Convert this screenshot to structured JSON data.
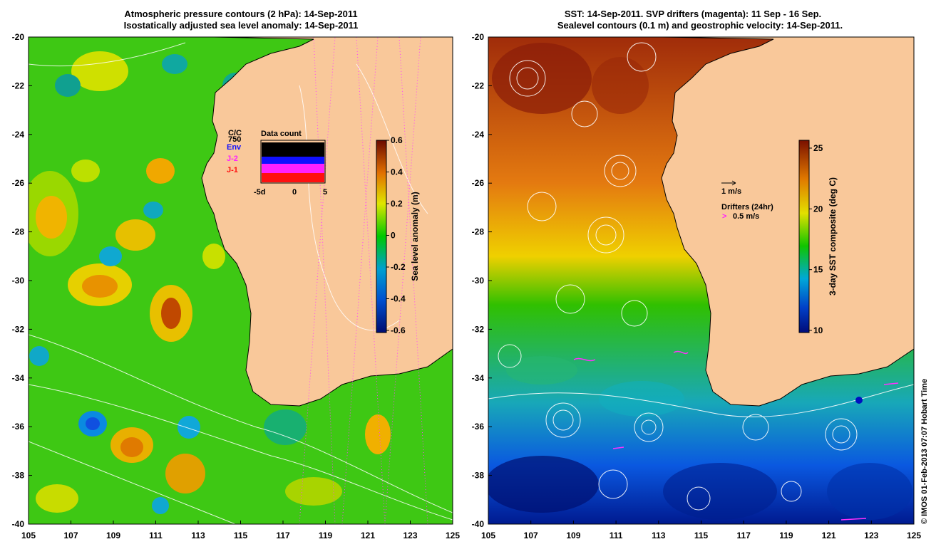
{
  "left_panel": {
    "title_line1": "Atmospheric pressure contours (2 hPa): 14-Sep-2011",
    "title_line2": "Isostatically adjusted sea level anomaly: 14-Sep-2011",
    "y_ticks": [
      "-20",
      "-22",
      "-24",
      "-26",
      "-28",
      "-30",
      "-32",
      "-34",
      "-36",
      "-38",
      "-40"
    ],
    "x_ticks": [
      "105",
      "107",
      "109",
      "111",
      "113",
      "115",
      "117",
      "119",
      "121",
      "123",
      "125"
    ],
    "colorbar": {
      "label": "Sea level anomaly (m)",
      "ticks": [
        "0.6",
        "0.4",
        "0.2",
        "0",
        "-0.2",
        "-0.4",
        "-0.6"
      ],
      "colors": [
        "#6b0a00",
        "#b23000",
        "#e27000",
        "#f4b400",
        "#dfe600",
        "#7ee000",
        "#00c800",
        "#00aa60",
        "#00a0d0",
        "#0070e0",
        "#0030b0",
        "#000c70"
      ]
    },
    "legend": {
      "code": "C/C",
      "count": "750",
      "datasets": [
        {
          "label": "Env",
          "color": "#1010ff"
        },
        {
          "label": "J-2",
          "color": "#ff20ff"
        },
        {
          "label": "J-1",
          "color": "#ff1010"
        }
      ],
      "chart_title": "Data count",
      "axis_ticks": [
        "-5d",
        "0",
        "5"
      ]
    }
  },
  "right_panel": {
    "title_line1": "SST: 14-Sep-2011. SVP drifters (magenta): 11 Sep - 16 Sep.",
    "title_line2": "Sealevel contours (0.1 m) and geostrophic velocity: 14-Sep-2011.",
    "y_ticks": [
      "-20",
      "-22",
      "-24",
      "-26",
      "-28",
      "-30",
      "-32",
      "-34",
      "-36",
      "-38",
      "-40"
    ],
    "x_ticks": [
      "105",
      "107",
      "109",
      "111",
      "113",
      "115",
      "117",
      "119",
      "121",
      "123",
      "125"
    ],
    "colorbar": {
      "label": "3-day SST composite (deg C)",
      "ticks": [
        "25",
        "20",
        "15",
        "10"
      ],
      "colors": [
        "#7a1000",
        "#b83800",
        "#e07800",
        "#f2b200",
        "#e2e000",
        "#8adc00",
        "#10c400",
        "#00b070",
        "#00a8d8",
        "#0070e8",
        "#0030b8",
        "#000c78"
      ]
    },
    "velocity_key": "1 m/s",
    "drifters_title": "Drifters (24hr)",
    "drifters_key": "0.5 m/s"
  },
  "credit": "© IMOS 01-Feb-2013 07:07 Hobart Time",
  "colors": {
    "land": "#f9c89a",
    "axis": "#000000"
  }
}
